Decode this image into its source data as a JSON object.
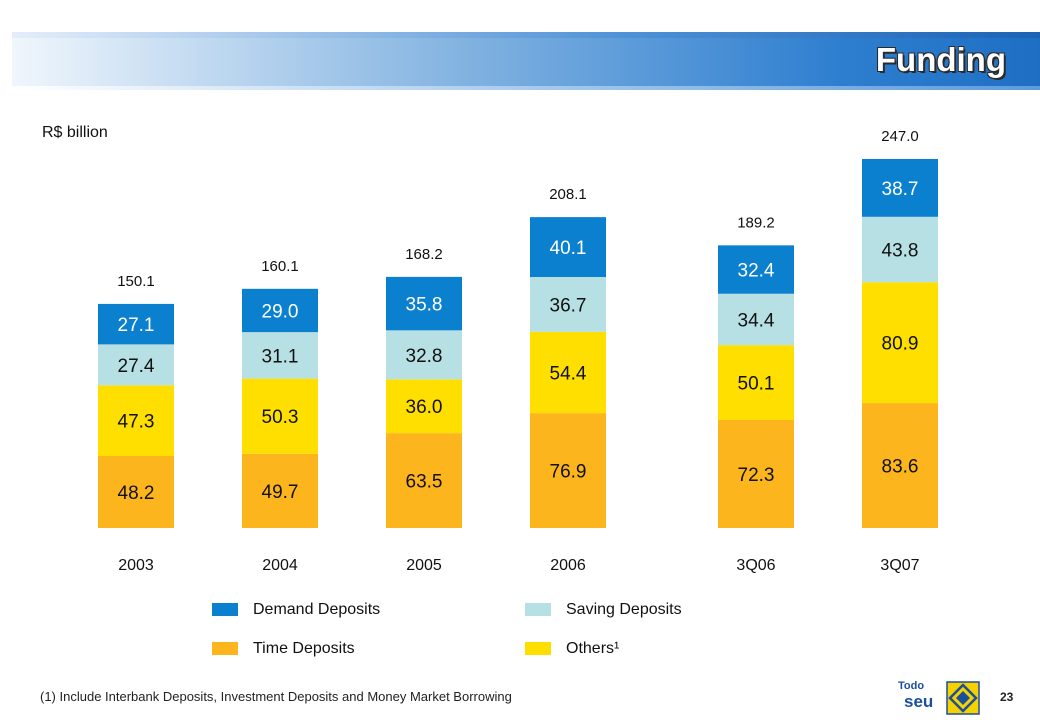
{
  "header": {
    "title": "Funding"
  },
  "unit_label": "R$ billion",
  "footnote": "(1) Include Interbank Deposits, Investment Deposits and Money Market Borrowing",
  "page_number": "23",
  "logo": {
    "top_text": "Todo",
    "bottom_text": "seu"
  },
  "colors": {
    "demand": "#0a80cf",
    "saving": "#b7e0e4",
    "others": "#ffdf00",
    "time": "#fcb51d"
  },
  "legend": [
    {
      "label": "Demand Deposits",
      "color": "#0a80cf"
    },
    {
      "label": "Saving Deposits",
      "color": "#b7e0e4"
    },
    {
      "label": "Time Deposits",
      "color": "#fcb51d"
    },
    {
      "label": "Others¹",
      "color": "#ffdf00"
    }
  ],
  "chart_data": {
    "type": "bar",
    "stacked": true,
    "categories": [
      "2003",
      "2004",
      "2005",
      "2006",
      "3Q06",
      "3Q07"
    ],
    "totals": [
      "150.1",
      "160.1",
      "168.2",
      "208.1",
      "189.2",
      "247.0"
    ],
    "series": [
      {
        "name": "Time Deposits",
        "color": "#fcb51d",
        "values": [
          48.2,
          49.7,
          63.5,
          76.9,
          72.3,
          83.6
        ]
      },
      {
        "name": "Others¹",
        "color": "#ffdf00",
        "values": [
          47.3,
          50.3,
          36.0,
          54.4,
          50.1,
          80.9
        ]
      },
      {
        "name": "Saving Deposits",
        "color": "#b7e0e4",
        "values": [
          27.4,
          31.1,
          32.8,
          36.7,
          34.4,
          43.8
        ]
      },
      {
        "name": "Demand Deposits",
        "color": "#0a80cf",
        "values": [
          27.1,
          29.0,
          35.8,
          40.1,
          32.4,
          38.7
        ]
      }
    ],
    "legend_position": "bottom",
    "grid": false
  }
}
